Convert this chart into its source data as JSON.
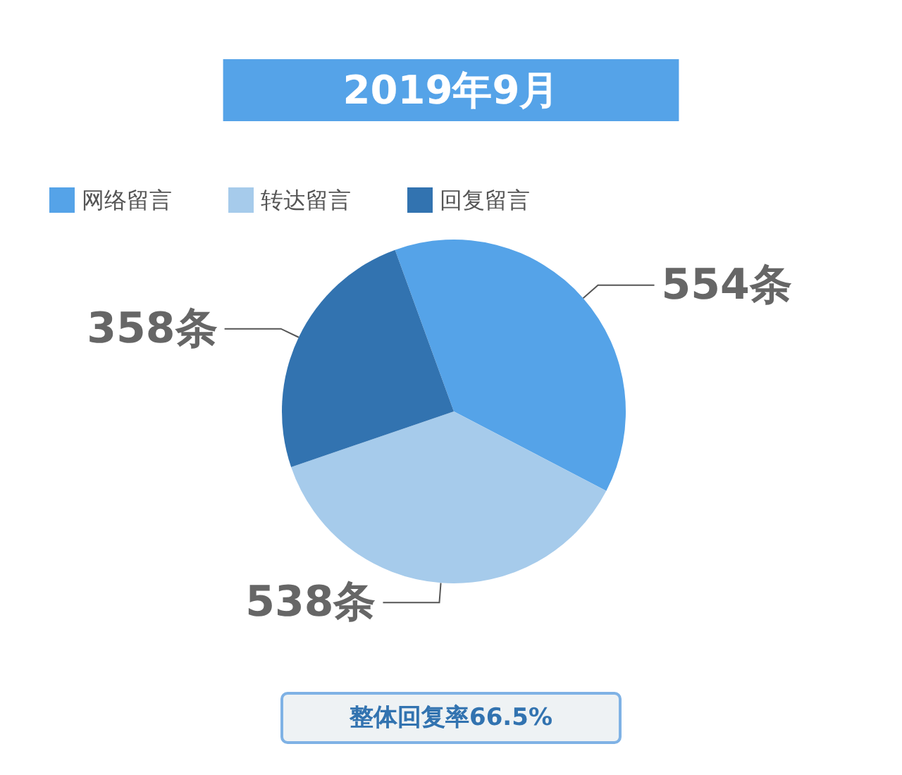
{
  "chart_data": {
    "type": "pie",
    "title": "2019年9月",
    "categories": [
      "网络留言",
      "转达留言",
      "回复留言"
    ],
    "values": [
      554,
      538,
      358
    ],
    "colors": [
      "#55a3e8",
      "#a6cbeb",
      "#3273b0"
    ],
    "value_labels": [
      "554条",
      "538条",
      "358条"
    ],
    "legend": "top left",
    "annotations": [
      "整体回复率66.5%"
    ]
  }
}
